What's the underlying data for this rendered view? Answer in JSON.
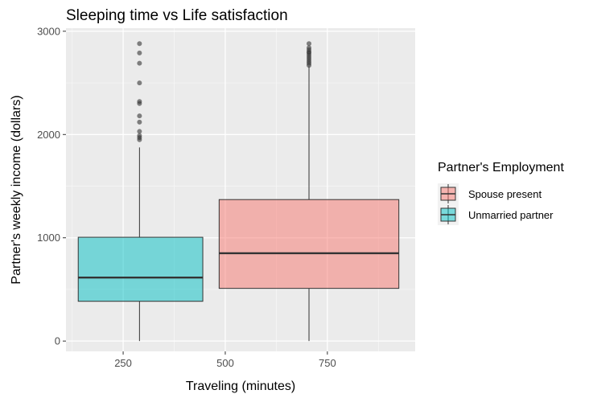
{
  "chart_data": {
    "type": "boxplot",
    "title": "Sleeping time vs Life satisfaction",
    "xlabel": "Traveling (minutes)",
    "ylabel": "Partner's weekly income (dollars)",
    "xlim": [
      110,
      965
    ],
    "ylim": [
      -100,
      3030
    ],
    "x_ticks": [
      250,
      500,
      750
    ],
    "y_ticks": [
      0,
      1000,
      2000,
      3000
    ],
    "x_tick_labels": [
      "250",
      "500",
      "750"
    ],
    "y_tick_labels": [
      "0",
      "1000",
      "2000",
      "3000"
    ],
    "grid": true,
    "legend": {
      "title": "Partner's Employment",
      "position": "right",
      "entries": [
        "Spouse present",
        "Unmarried partner"
      ]
    },
    "series": [
      {
        "name": "Unmarried partner",
        "color": "#00BFC4",
        "x_center": 290,
        "x_range": [
          140,
          445
        ],
        "min": 0,
        "q1": 385,
        "median": 615,
        "q3": 1005,
        "max": 1875,
        "outliers": [
          1950,
          1970,
          1990,
          2030,
          2120,
          2180,
          2300,
          2320,
          2500,
          2690,
          2790,
          2880
        ]
      },
      {
        "name": "Spouse present",
        "color": "#F8766D",
        "x_center": 705,
        "x_range": [
          485,
          925
        ],
        "min": 0,
        "q1": 510,
        "median": 850,
        "q3": 1370,
        "max": 2660,
        "outliers": [
          2670,
          2690,
          2710,
          2730,
          2750,
          2770,
          2790,
          2800,
          2820,
          2840,
          2880
        ]
      }
    ]
  }
}
